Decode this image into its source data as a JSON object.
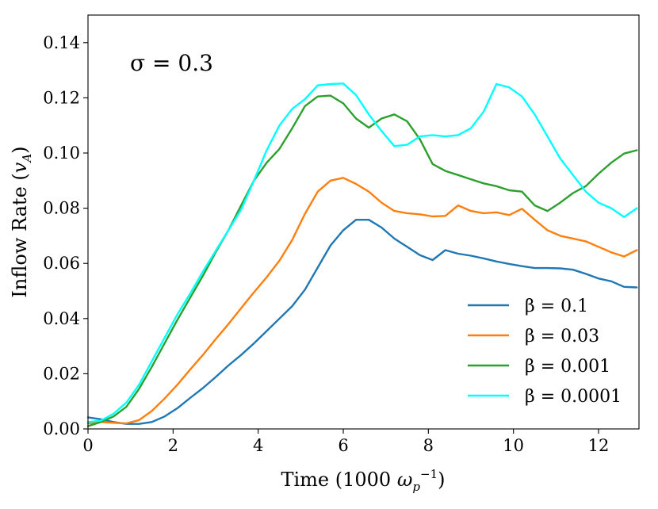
{
  "chart_data": {
    "type": "line",
    "title": "",
    "annotation": "σ = 0.3",
    "xlabel": "Time (1000 ω_p^-1)",
    "xlabel_parts": {
      "main": "Time (1000 ",
      "symbol": "ω",
      "sub": "p",
      "sup": "−1",
      "close": ")"
    },
    "ylabel": "Inflow Rate (v_A)",
    "ylabel_parts": {
      "main": "Inflow Rate (",
      "symbol": "v",
      "sub": "A",
      "close": ")"
    },
    "xlim": [
      0,
      12.95
    ],
    "ylim": [
      0,
      0.15
    ],
    "xticks": [
      0,
      2,
      4,
      6,
      8,
      10,
      12
    ],
    "xtick_labels": [
      "0",
      "2",
      "4",
      "6",
      "8",
      "10",
      "12"
    ],
    "yticks": [
      0.0,
      0.02,
      0.04,
      0.06,
      0.08,
      0.1,
      0.12,
      0.14
    ],
    "ytick_labels": [
      "0.00",
      "0.02",
      "0.04",
      "0.06",
      "0.08",
      "0.10",
      "0.12",
      "0.14"
    ],
    "grid": false,
    "legend_position": "lower-right",
    "series": [
      {
        "name": "β = 0.1",
        "label": "β = 0.1",
        "color": "#1f77b4",
        "x": [
          0.0,
          0.3,
          0.6,
          0.9,
          1.2,
          1.5,
          1.8,
          2.1,
          2.4,
          2.7,
          3.0,
          3.3,
          3.6,
          3.9,
          4.2,
          4.5,
          4.8,
          5.1,
          5.4,
          5.7,
          6.0,
          6.3,
          6.6,
          6.9,
          7.2,
          7.5,
          7.8,
          8.1,
          8.4,
          8.7,
          9.0,
          9.3,
          9.6,
          9.9,
          10.2,
          10.5,
          10.8,
          11.1,
          11.4,
          11.7,
          12.0,
          12.3,
          12.6,
          12.9
        ],
        "values": [
          0.0042,
          0.0035,
          0.0025,
          0.0018,
          0.0018,
          0.0025,
          0.0045,
          0.0075,
          0.0112,
          0.0148,
          0.0188,
          0.023,
          0.0268,
          0.031,
          0.0355,
          0.04,
          0.0445,
          0.0505,
          0.0585,
          0.0665,
          0.072,
          0.0758,
          0.0758,
          0.073,
          0.069,
          0.066,
          0.063,
          0.0612,
          0.0648,
          0.0635,
          0.0628,
          0.0618,
          0.0607,
          0.0598,
          0.059,
          0.0583,
          0.0583,
          0.0582,
          0.0577,
          0.0562,
          0.0545,
          0.0535,
          0.0515,
          0.0513
        ]
      },
      {
        "name": "β = 0.03",
        "label": "β = 0.03",
        "color": "#ff7f0e",
        "x": [
          0.0,
          0.3,
          0.6,
          0.9,
          1.2,
          1.5,
          1.8,
          2.1,
          2.4,
          2.7,
          3.0,
          3.3,
          3.6,
          3.9,
          4.2,
          4.5,
          4.8,
          5.1,
          5.4,
          5.7,
          6.0,
          6.3,
          6.6,
          6.9,
          7.2,
          7.5,
          7.8,
          8.1,
          8.4,
          8.7,
          9.0,
          9.3,
          9.6,
          9.9,
          10.2,
          10.5,
          10.8,
          11.1,
          11.4,
          11.7,
          12.0,
          12.3,
          12.6,
          12.9
        ],
        "values": [
          0.002,
          0.0025,
          0.0022,
          0.002,
          0.0032,
          0.0065,
          0.011,
          0.016,
          0.0215,
          0.0268,
          0.0325,
          0.038,
          0.0438,
          0.0495,
          0.055,
          0.061,
          0.0685,
          0.078,
          0.086,
          0.09,
          0.091,
          0.0888,
          0.086,
          0.082,
          0.079,
          0.0782,
          0.0778,
          0.077,
          0.0772,
          0.081,
          0.079,
          0.0782,
          0.0785,
          0.0775,
          0.0798,
          0.0758,
          0.072,
          0.07,
          0.069,
          0.068,
          0.066,
          0.064,
          0.0625,
          0.0648
        ]
      },
      {
        "name": "β = 0.001",
        "label": "β = 0.001",
        "color": "#2ca02c",
        "x": [
          0.0,
          0.3,
          0.6,
          0.9,
          1.2,
          1.5,
          1.8,
          2.1,
          2.4,
          2.7,
          3.0,
          3.3,
          3.6,
          3.9,
          4.2,
          4.5,
          4.8,
          5.1,
          5.4,
          5.7,
          6.0,
          6.3,
          6.6,
          6.9,
          7.2,
          7.5,
          7.8,
          8.1,
          8.4,
          8.7,
          9.0,
          9.3,
          9.6,
          9.9,
          10.2,
          10.5,
          10.8,
          11.1,
          11.4,
          11.7,
          12.0,
          12.3,
          12.6,
          12.9
        ],
        "values": [
          0.001,
          0.0025,
          0.0045,
          0.008,
          0.0145,
          0.0225,
          0.031,
          0.0395,
          0.0475,
          0.0555,
          0.064,
          0.072,
          0.081,
          0.09,
          0.0965,
          0.1015,
          0.109,
          0.117,
          0.1205,
          0.1208,
          0.118,
          0.1125,
          0.1092,
          0.1125,
          0.114,
          0.1115,
          0.105,
          0.096,
          0.0935,
          0.092,
          0.0905,
          0.089,
          0.088,
          0.0865,
          0.086,
          0.081,
          0.079,
          0.082,
          0.0855,
          0.088,
          0.0925,
          0.0965,
          0.0998,
          0.101
        ]
      },
      {
        "name": "β = 0.0001",
        "label": "β = 0.0001",
        "color": "#00ffff",
        "x": [
          0.0,
          0.3,
          0.6,
          0.9,
          1.2,
          1.5,
          1.8,
          2.1,
          2.4,
          2.7,
          3.0,
          3.3,
          3.6,
          3.9,
          4.2,
          4.5,
          4.8,
          5.1,
          5.4,
          5.7,
          6.0,
          6.3,
          6.6,
          6.9,
          7.2,
          7.5,
          7.8,
          8.1,
          8.4,
          8.7,
          9.0,
          9.3,
          9.6,
          9.9,
          10.2,
          10.5,
          10.8,
          11.1,
          11.4,
          11.7,
          12.0,
          12.3,
          12.6,
          12.9
        ],
        "values": [
          0.0025,
          0.003,
          0.0055,
          0.0095,
          0.016,
          0.0245,
          0.033,
          0.0415,
          0.049,
          0.057,
          0.0645,
          0.072,
          0.0795,
          0.09,
          0.101,
          0.11,
          0.116,
          0.1195,
          0.1245,
          0.125,
          0.1252,
          0.121,
          0.114,
          0.108,
          0.1025,
          0.103,
          0.106,
          0.1065,
          0.106,
          0.1065,
          0.109,
          0.115,
          0.125,
          0.1238,
          0.1205,
          0.114,
          0.106,
          0.098,
          0.092,
          0.086,
          0.082,
          0.08,
          0.0768,
          0.08
        ]
      }
    ]
  }
}
